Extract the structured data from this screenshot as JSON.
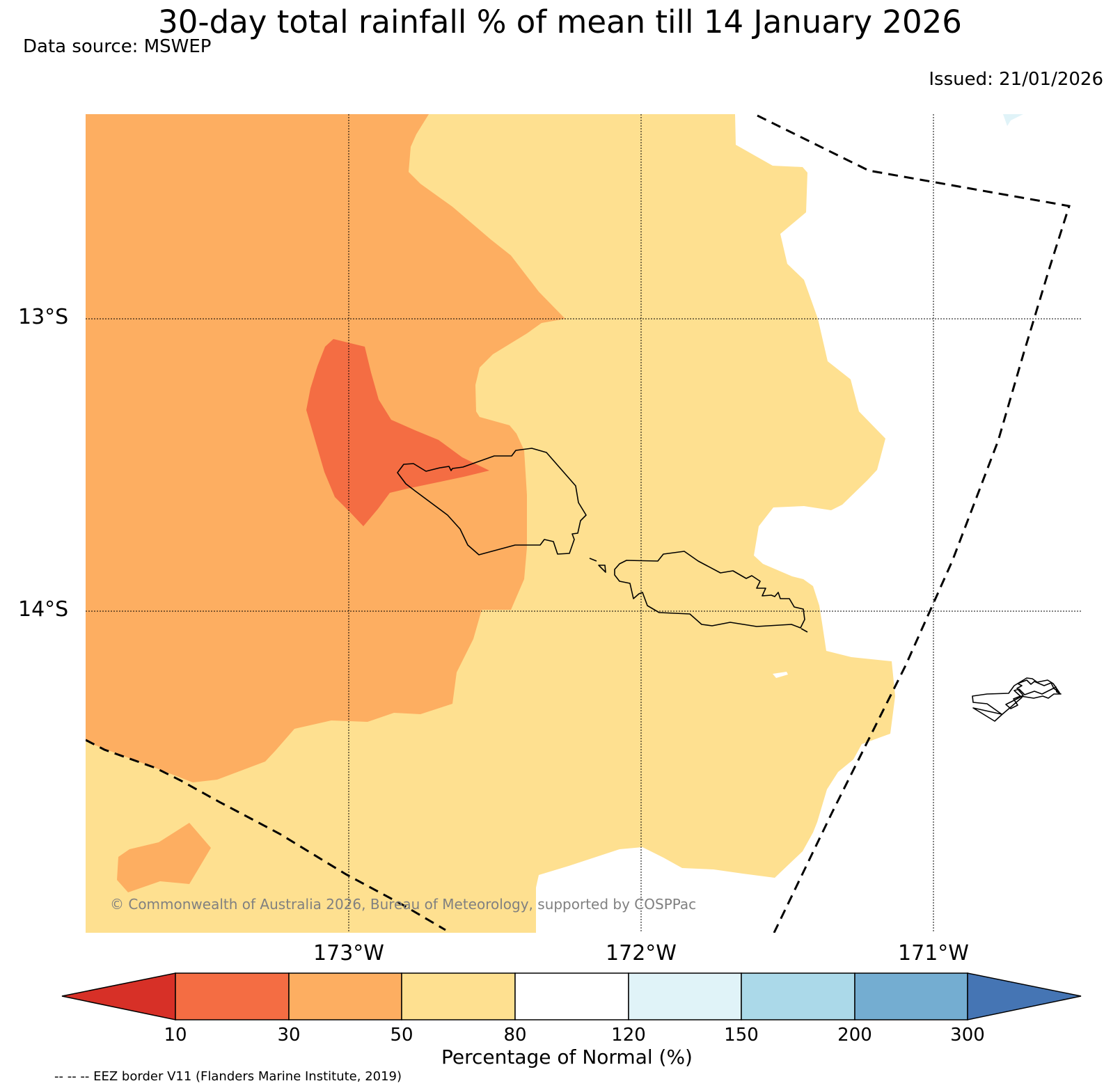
{
  "title": "30-day total rainfall % of mean till 14 January 2026",
  "data_source": "Data source: MSWEP",
  "issued": "Issued: 21/01/2026",
  "copyright": "© Commonwealth of Australia 2026, Bureau of Meteorology, supported by COSPPac",
  "latitude_labels": [
    "13°S",
    "14°S"
  ],
  "longitude_labels": [
    "173°W",
    "172°W",
    "171°W"
  ],
  "colorbar": {
    "title": "Percentage of Normal (%)",
    "ticks": [
      "10",
      "30",
      "50",
      "80",
      "120",
      "150",
      "200",
      "300"
    ],
    "bins": [
      {
        "range": "<10",
        "color": "#d73027"
      },
      {
        "range": "10-30",
        "color": "#f46d43"
      },
      {
        "range": "30-50",
        "color": "#fdae61"
      },
      {
        "range": "50-80",
        "color": "#fee090"
      },
      {
        "range": "80-120",
        "color": "#ffffff"
      },
      {
        "range": "120-150",
        "color": "#e0f3f8"
      },
      {
        "range": "150-200",
        "color": "#abd9e9"
      },
      {
        "range": "200-300",
        "color": "#74add1"
      },
      {
        "range": ">300",
        "color": "#4575b4"
      }
    ]
  },
  "legend_note": "-- -- -- EEZ border V11 (Flanders Marine Institute, 2019)"
}
